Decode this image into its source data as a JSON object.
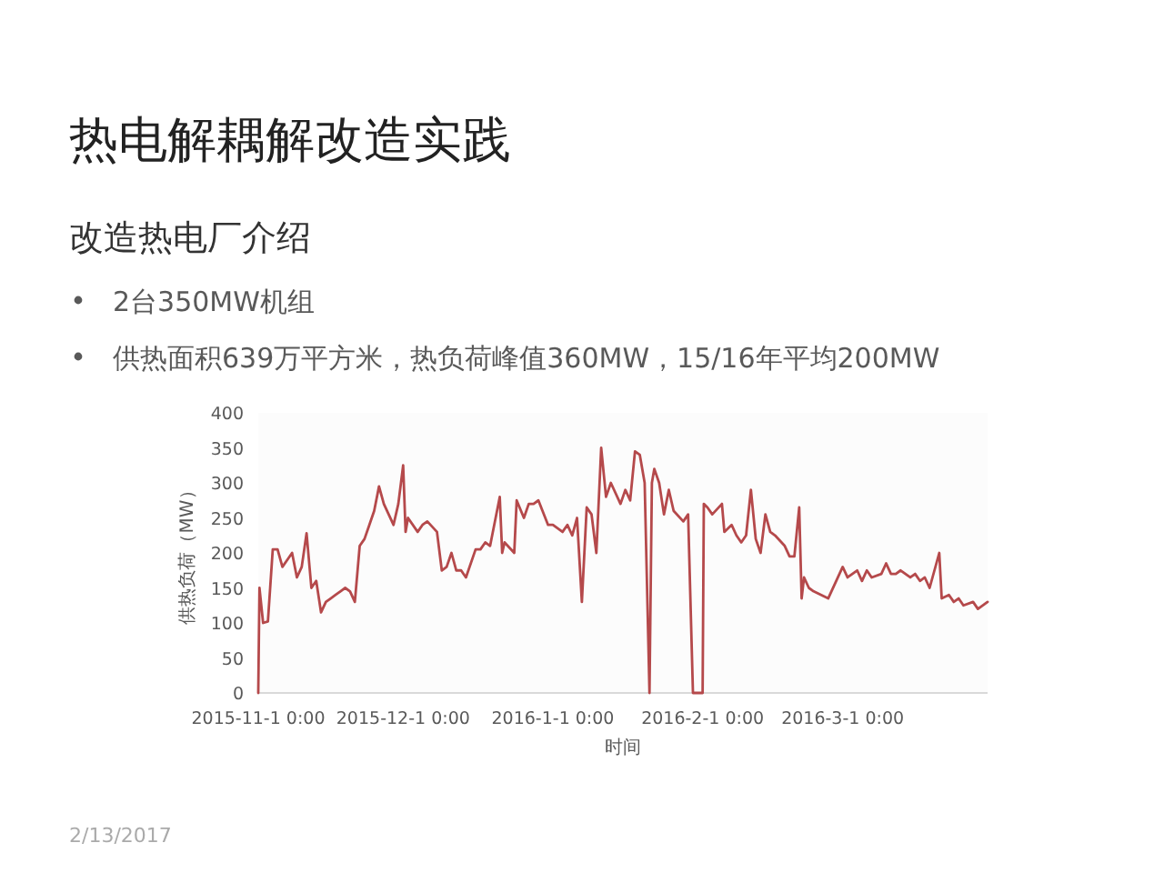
{
  "chart_data": {
    "type": "line",
    "title": "热电解耦解改造实践",
    "subtitle": "改造热电厂介绍",
    "xlabel": "时间",
    "ylabel": "供热负荷（MW）",
    "annotations": [
      "2台350MW机组",
      "供热面积639万平方米，热负荷峰值360MW，15/16年平均200MW",
      "2/13/2017"
    ],
    "xlim": [
      "2015-11-01",
      "2016-03-31"
    ],
    "xticks": [
      {
        "value": "2015-11-01",
        "label": "2015-11-1 0:00"
      },
      {
        "value": "2015-12-01",
        "label": "2015-12-1 0:00"
      },
      {
        "value": "2016-01-01",
        "label": "2016-1-1 0:00"
      },
      {
        "value": "2016-02-01",
        "label": "2016-2-1 0:00"
      },
      {
        "value": "2016-03-01",
        "label": "2016-3-1 0:00"
      }
    ],
    "ylim": [
      0,
      400
    ],
    "yticks": [
      0,
      50,
      100,
      150,
      200,
      250,
      300,
      350,
      400
    ],
    "x": [
      "2015-11-01T00:00",
      "2015-11-01T06:00",
      "2015-11-02",
      "2015-11-03",
      "2015-11-04",
      "2015-11-05",
      "2015-11-06",
      "2015-11-07",
      "2015-11-08",
      "2015-11-09",
      "2015-11-10",
      "2015-11-11",
      "2015-11-12",
      "2015-11-13",
      "2015-11-14",
      "2015-11-15",
      "2015-11-16",
      "2015-11-17",
      "2015-11-18",
      "2015-11-19",
      "2015-11-20",
      "2015-11-21",
      "2015-11-22",
      "2015-11-23",
      "2015-11-24",
      "2015-11-25",
      "2015-11-26",
      "2015-11-27",
      "2015-11-28",
      "2015-11-29",
      "2015-11-30",
      "2015-12-01T00:00",
      "2015-12-01T12:00",
      "2015-12-02",
      "2015-12-04",
      "2015-12-05",
      "2015-12-06",
      "2015-12-08",
      "2015-12-09",
      "2015-12-10",
      "2015-12-11",
      "2015-12-12",
      "2015-12-13",
      "2015-12-14",
      "2015-12-16",
      "2015-12-17",
      "2015-12-18",
      "2015-12-19",
      "2015-12-21T00:00",
      "2015-12-21T12:00",
      "2015-12-22",
      "2015-12-24T00:00",
      "2015-12-24T12:00",
      "2015-12-26",
      "2015-12-27",
      "2015-12-28",
      "2015-12-29",
      "2015-12-31",
      "2016-01-01",
      "2016-01-03",
      "2016-01-04",
      "2016-01-05",
      "2016-01-06",
      "2016-01-07",
      "2016-01-08",
      "2016-01-09",
      "2016-01-10",
      "2016-01-11",
      "2016-01-12",
      "2016-01-13",
      "2016-01-15",
      "2016-01-16",
      "2016-01-17",
      "2016-01-18",
      "2016-01-19",
      "2016-01-20",
      "2016-01-21T00:00",
      "2016-01-21T12:00",
      "2016-01-22",
      "2016-01-23",
      "2016-01-24",
      "2016-01-25",
      "2016-01-26",
      "2016-01-28",
      "2016-01-29",
      "2016-01-30",
      "2016-02-01T00:00",
      "2016-02-01T06:00",
      "2016-02-02",
      "2016-02-03",
      "2016-02-05T00:00",
      "2016-02-05T12:00",
      "2016-02-07",
      "2016-02-08",
      "2016-02-09",
      "2016-02-10",
      "2016-02-11",
      "2016-02-12",
      "2016-02-13",
      "2016-02-14",
      "2016-02-15",
      "2016-02-16",
      "2016-02-18",
      "2016-02-19",
      "2016-02-20",
      "2016-02-21T00:00",
      "2016-02-21T12:00",
      "2016-02-22",
      "2016-02-23",
      "2016-02-24",
      "2016-02-27",
      "2016-03-01",
      "2016-03-02",
      "2016-03-04",
      "2016-03-05",
      "2016-03-06",
      "2016-03-07",
      "2016-03-09",
      "2016-03-10",
      "2016-03-11",
      "2016-03-12",
      "2016-03-13",
      "2016-03-15",
      "2016-03-16",
      "2016-03-17",
      "2016-03-18",
      "2016-03-19",
      "2016-03-21T00:00",
      "2016-03-21T12:00",
      "2016-03-23",
      "2016-03-24",
      "2016-03-25",
      "2016-03-26",
      "2016-03-28",
      "2016-03-29",
      "2016-03-31"
    ],
    "series": [
      {
        "color": "#b5494b",
        "values": [
          0,
          150,
          100,
          102,
          205,
          205,
          180,
          190,
          200,
          165,
          180,
          228,
          150,
          160,
          115,
          130,
          135,
          140,
          145,
          150,
          145,
          130,
          210,
          220,
          240,
          260,
          295,
          270,
          255,
          240,
          270,
          325,
          230,
          250,
          230,
          240,
          245,
          230,
          175,
          180,
          200,
          175,
          175,
          165,
          205,
          205,
          215,
          210,
          280,
          200,
          215,
          200,
          275,
          250,
          270,
          270,
          275,
          240,
          240,
          230,
          240,
          225,
          250,
          130,
          265,
          255,
          200,
          350,
          280,
          300,
          270,
          290,
          275,
          345,
          340,
          300,
          0,
          300,
          320,
          300,
          255,
          290,
          260,
          245,
          255,
          0,
          0,
          270,
          265,
          255,
          270,
          230,
          240,
          225,
          215,
          225,
          290,
          220,
          200,
          255,
          230,
          225,
          210,
          195,
          195,
          265,
          135,
          165,
          150,
          145,
          135,
          180,
          165,
          175,
          160,
          175,
          165,
          170,
          185,
          170,
          170,
          175,
          165,
          170,
          160,
          165,
          150,
          200,
          135,
          140,
          130,
          135,
          125,
          130,
          120,
          130
        ]
      }
    ]
  }
}
